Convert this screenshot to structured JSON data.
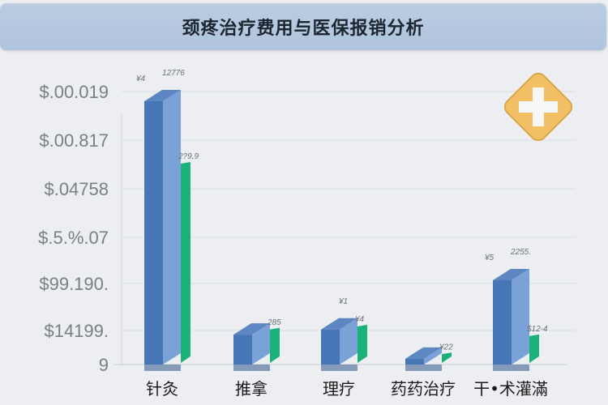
{
  "header": {
    "title": "颈疼治疗费用与医保报销分析"
  },
  "icon": {
    "name": "medical-cross-diamond-icon",
    "color": "#f2c064"
  },
  "chart_data": {
    "type": "bar",
    "title": "颈疼治疗费用与医保报销分析",
    "categories": [
      "针灸",
      "推拿",
      "理疗",
      "药药治疗",
      "干•术灌滿"
    ],
    "series": [
      {
        "color": "#4a7dbf",
        "values": [
          12776,
          1450,
          1700,
          280,
          4090
        ],
        "labels": [
          "12776",
          "",
          "¥1",
          "",
          "2255."
        ],
        "prefix_labels": [
          "¥4",
          "",
          "",
          "",
          "¥5"
        ]
      },
      {
        "color": "#1bb27a",
        "values": [
          9750,
          1700,
          1850,
          500,
          1380
        ],
        "labels": [
          "2?9.9",
          "285",
          "¥4",
          "¥22",
          "$12-4"
        ]
      }
    ],
    "ytick_labels": [
      "9",
      "$14199.",
      "$99.190.",
      "$.5.%.07",
      "$.04758",
      "$.00.817",
      "$.00.019"
    ],
    "ylim": [
      0,
      13500
    ],
    "grid": true,
    "legend": "none",
    "xlabel": "",
    "ylabel": ""
  }
}
